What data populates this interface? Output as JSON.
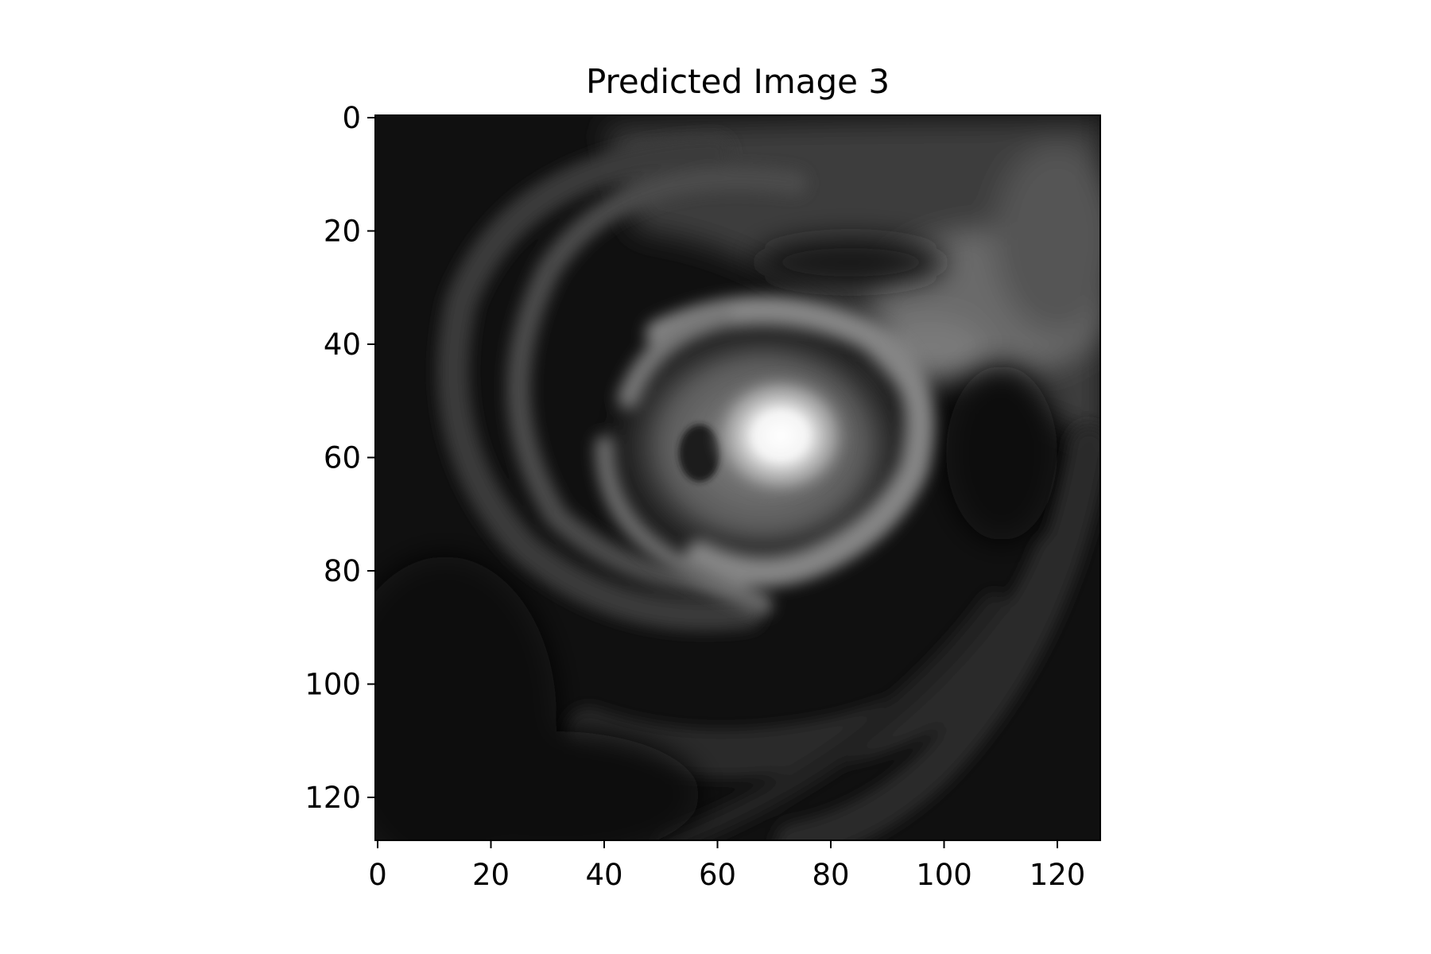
{
  "figure": {
    "title": "Predicted Image 3",
    "background": "#ffffff",
    "image": {
      "colormap": "grayscale",
      "description_of_content": "satellite-like cyclone cloud swirl, bright eye near center-right",
      "pixel_grid": [
        128,
        128
      ]
    },
    "x_axis": {
      "range": [
        0,
        128
      ],
      "ticks": [
        0,
        20,
        40,
        60,
        80,
        100,
        120
      ],
      "tick_labels": [
        "0",
        "20",
        "40",
        "60",
        "80",
        "100",
        "120"
      ]
    },
    "y_axis": {
      "range": [
        0,
        128
      ],
      "inverted": true,
      "ticks": [
        0,
        20,
        40,
        60,
        80,
        100,
        120
      ],
      "tick_labels": [
        "0",
        "20",
        "40",
        "60",
        "80",
        "100",
        "120"
      ]
    }
  }
}
